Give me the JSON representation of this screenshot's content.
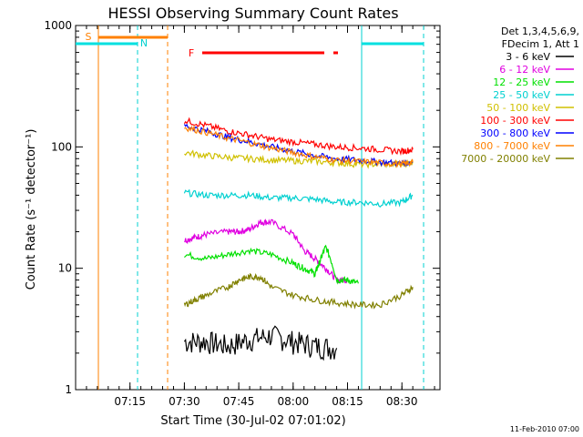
{
  "chart_data": {
    "type": "line",
    "title": "HESSI Observing Summary Count Rates",
    "xlabel": "Start Time (30-Jul-02 07:01:02)",
    "ylabel": "Count Rate (s⁻¹ detector⁻¹)",
    "ylog": true,
    "ylim": [
      1,
      1000
    ],
    "xlim_minutes": [
      7.0,
      8.675
    ],
    "grid": false,
    "legend_position": "right-outside",
    "x_ticks": [
      {
        "label": "07:15",
        "value": 7.25
      },
      {
        "label": "07:30",
        "value": 7.5
      },
      {
        "label": "07:45",
        "value": 7.75
      },
      {
        "label": "08:00",
        "value": 8.0
      },
      {
        "label": "08:15",
        "value": 8.25
      },
      {
        "label": "08:30",
        "value": 8.5
      }
    ],
    "y_ticks": [
      {
        "label": "1",
        "value": 1
      },
      {
        "label": "10",
        "value": 10
      },
      {
        "label": "100",
        "value": 100
      },
      {
        "label": "1000",
        "value": 1000
      }
    ],
    "legend_header": [
      "Det 1,3,4,5,6,9,",
      "FDecim 1, Att 1"
    ],
    "series": [
      {
        "name": "3 - 6 keV",
        "color": "#000000",
        "x": [
          7.5,
          7.6,
          7.7,
          7.8,
          7.9,
          8.0,
          8.1,
          8.2
        ],
        "y": [
          2.5,
          2.5,
          2.3,
          2.6,
          2.8,
          2.5,
          2.3,
          2.2
        ]
      },
      {
        "name": "6 - 12 keV",
        "color": "#e000e0",
        "x": [
          7.5,
          7.55,
          7.6,
          7.7,
          7.75,
          7.8,
          7.85,
          7.9,
          8.0,
          8.05,
          8.1,
          8.15,
          8.2,
          8.25
        ],
        "y": [
          17,
          18,
          19,
          20,
          20,
          21,
          24,
          24,
          19,
          14,
          12,
          10,
          8,
          8
        ]
      },
      {
        "name": "12 - 25 keV",
        "color": "#00e000",
        "x": [
          7.5,
          7.6,
          7.7,
          7.8,
          7.9,
          8.0,
          8.05,
          8.1,
          8.12,
          8.15,
          8.2,
          8.25,
          8.3
        ],
        "y": [
          13,
          12,
          13,
          14,
          13,
          11,
          10,
          9,
          11,
          15,
          8,
          8,
          7.5
        ]
      },
      {
        "name": "25 - 50 keV",
        "color": "#00d0d0",
        "x": [
          7.5,
          7.6,
          7.7,
          7.8,
          7.9,
          8.0,
          8.1,
          8.2,
          8.3,
          8.4,
          8.5,
          8.55
        ],
        "y": [
          42,
          40,
          40,
          40,
          38,
          38,
          37,
          35,
          35,
          34,
          35,
          40
        ]
      },
      {
        "name": "50 - 100 keV",
        "color": "#d0c000",
        "x": [
          7.5,
          7.6,
          7.7,
          7.8,
          7.9,
          8.0,
          8.1,
          8.2,
          8.3,
          8.4,
          8.5,
          8.55
        ],
        "y": [
          90,
          85,
          82,
          80,
          78,
          77,
          76,
          74,
          72,
          72,
          72,
          75
        ]
      },
      {
        "name": "100 - 300 keV",
        "color": "#ff0000",
        "x": [
          7.5,
          7.6,
          7.7,
          7.8,
          7.9,
          8.0,
          8.1,
          8.2,
          8.3,
          8.4,
          8.5,
          8.55
        ],
        "y": [
          165,
          150,
          135,
          125,
          115,
          110,
          105,
          100,
          98,
          95,
          92,
          95
        ]
      },
      {
        "name": "300 - 800 keV",
        "color": "#0000ff",
        "x": [
          7.5,
          7.6,
          7.7,
          7.8,
          7.9,
          8.0,
          8.1,
          8.2,
          8.3,
          8.4,
          8.5,
          8.55
        ],
        "y": [
          150,
          135,
          120,
          110,
          100,
          92,
          85,
          80,
          78,
          75,
          73,
          75
        ]
      },
      {
        "name": "800 - 7000 keV",
        "color": "#ff8000",
        "x": [
          7.5,
          7.6,
          7.7,
          7.8,
          7.9,
          8.0,
          8.1,
          8.2,
          8.3,
          8.4,
          8.5,
          8.55
        ],
        "y": [
          145,
          132,
          118,
          108,
          98,
          90,
          83,
          78,
          76,
          74,
          72,
          75
        ]
      },
      {
        "name": "7000 - 20000 keV",
        "color": "#808000",
        "x": [
          7.5,
          7.55,
          7.6,
          7.7,
          7.75,
          7.8,
          7.85,
          7.9,
          8.0,
          8.1,
          8.2,
          8.3,
          8.4,
          8.5,
          8.55
        ],
        "y": [
          5,
          5.5,
          6,
          7,
          8,
          8.5,
          8.5,
          7,
          6,
          5.5,
          5.2,
          5,
          5,
          6,
          7
        ]
      }
    ],
    "annotations": [
      {
        "label": "S",
        "color": "#ff8000"
      },
      {
        "label": "N",
        "color": "#00d0d0"
      },
      {
        "label": "F",
        "color": "#ff0000"
      }
    ],
    "footer_date": "11-Feb-2010 07:00"
  }
}
